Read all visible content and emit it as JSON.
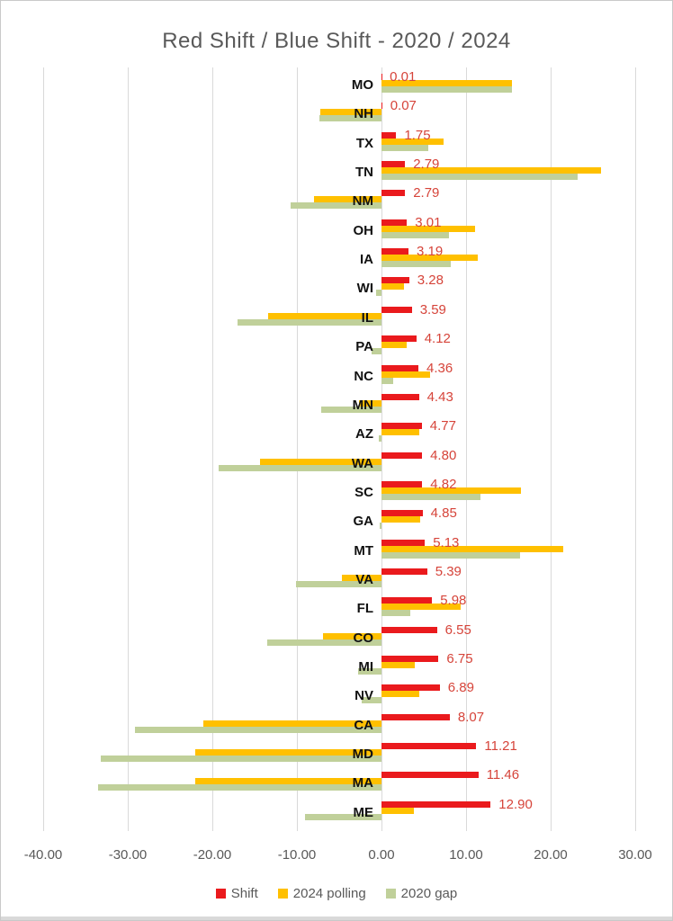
{
  "window": {
    "title": "Red Shift / Blue Shift - 2020 / 2024"
  },
  "chart_data": {
    "type": "bar",
    "orientation": "horizontal",
    "title": "Red Shift / Blue Shift - 2020 / 2024",
    "categories": [
      "MO",
      "NH",
      "TX",
      "TN",
      "NM",
      "OH",
      "IA",
      "WI",
      "IL",
      "PA",
      "NC",
      "MN",
      "AZ",
      "WA",
      "SC",
      "GA",
      "MT",
      "VA",
      "FL",
      "CO",
      "MI",
      "NV",
      "CA",
      "MD",
      "MA",
      "ME"
    ],
    "series": [
      {
        "name": "Shift",
        "color": "#ea1a1d",
        "values": [
          0.01,
          0.07,
          1.75,
          2.79,
          2.79,
          3.01,
          3.19,
          3.28,
          3.59,
          4.12,
          4.36,
          4.43,
          4.77,
          4.8,
          4.82,
          4.85,
          5.13,
          5.39,
          5.98,
          6.55,
          6.75,
          6.89,
          8.07,
          11.21,
          11.46,
          12.9
        ]
      },
      {
        "name": "2024 polling",
        "color": "#ffc000",
        "values": [
          15.4,
          -7.28,
          7.33,
          25.99,
          -8.0,
          11.04,
          11.39,
          2.65,
          -13.39,
          2.95,
          5.71,
          -2.69,
          4.46,
          -14.41,
          16.5,
          4.61,
          21.5,
          -4.72,
          9.34,
          -6.95,
          3.97,
          4.5,
          -21.09,
          -22.0,
          -22.0,
          3.83
        ]
      },
      {
        "name": "2020 gap",
        "color": "#c0d09a",
        "values": [
          15.39,
          -7.35,
          5.58,
          23.2,
          -10.79,
          8.03,
          8.2,
          -0.63,
          -16.98,
          -1.17,
          1.35,
          -7.12,
          -0.31,
          -19.21,
          11.68,
          -0.24,
          16.37,
          -10.11,
          3.36,
          -13.5,
          -2.78,
          -2.39,
          -29.16,
          -33.21,
          -33.46,
          -9.07
        ]
      }
    ],
    "data_labels": {
      "series": "Shift",
      "values": [
        "0.01",
        "0.07",
        "1.75",
        "2.79",
        "2.79",
        "3.01",
        "3.19",
        "3.28",
        "3.59",
        "4.12",
        "4.36",
        "4.43",
        "4.77",
        "4.80",
        "4.82",
        "4.85",
        "5.13",
        "5.39",
        "5.98",
        "6.55",
        "6.75",
        "6.89",
        "8.07",
        "11.21",
        "11.46",
        "12.90"
      ],
      "color": "#d6443a"
    },
    "x_axis": {
      "min": -40,
      "max": 30,
      "step": 10,
      "tick_labels": [
        "-40.00",
        "-30.00",
        "-20.00",
        "-10.00",
        "0.00",
        "10.00",
        "20.00",
        "30.00"
      ]
    },
    "legend": [
      {
        "label": "Shift",
        "color": "#ea1a1d"
      },
      {
        "label": "2024 polling",
        "color": "#ffc000"
      },
      {
        "label": "2020 gap",
        "color": "#c0d09a"
      }
    ],
    "legend_position": "bottom",
    "grid": true,
    "colors": {
      "gridline": "#d9d9d9",
      "axis_text": "#595959",
      "title_text": "#595959",
      "category_text": "#111111"
    }
  }
}
